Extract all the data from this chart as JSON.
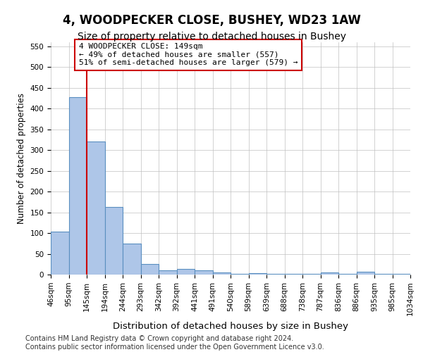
{
  "title": "4, WOODPECKER CLOSE, BUSHEY, WD23 1AW",
  "subtitle": "Size of property relative to detached houses in Bushey",
  "xlabel": "Distribution of detached houses by size in Bushey",
  "ylabel": "Number of detached properties",
  "bin_labels": [
    "46sqm",
    "95sqm",
    "145sqm",
    "194sqm",
    "244sqm",
    "293sqm",
    "342sqm",
    "392sqm",
    "441sqm",
    "491sqm",
    "540sqm",
    "589sqm",
    "639sqm",
    "688sqm",
    "738sqm",
    "787sqm",
    "836sqm",
    "886sqm",
    "935sqm",
    "985sqm",
    "1034sqm"
  ],
  "values": [
    104,
    428,
    321,
    163,
    75,
    26,
    11,
    13,
    11,
    5,
    1,
    4,
    1,
    1,
    1,
    5,
    1,
    6,
    1,
    1
  ],
  "bar_color": "#aec6e8",
  "bar_edge_color": "#5a8fc0",
  "vline_color": "#cc0000",
  "vline_pos": 1.5,
  "annotation_text": "4 WOODPECKER CLOSE: 149sqm\n← 49% of detached houses are smaller (557)\n51% of semi-detached houses are larger (579) →",
  "annotation_box_color": "#ffffff",
  "annotation_box_edge": "#cc0000",
  "ylim": [
    0,
    560
  ],
  "yticks": [
    0,
    50,
    100,
    150,
    200,
    250,
    300,
    350,
    400,
    450,
    500,
    550
  ],
  "footnote": "Contains HM Land Registry data © Crown copyright and database right 2024.\nContains public sector information licensed under the Open Government Licence v3.0.",
  "background_color": "#ffffff",
  "grid_color": "#c0c0c0",
  "title_fontsize": 12,
  "subtitle_fontsize": 10,
  "xlabel_fontsize": 9.5,
  "ylabel_fontsize": 8.5,
  "tick_fontsize": 7.5,
  "annotation_fontsize": 8,
  "footnote_fontsize": 7
}
